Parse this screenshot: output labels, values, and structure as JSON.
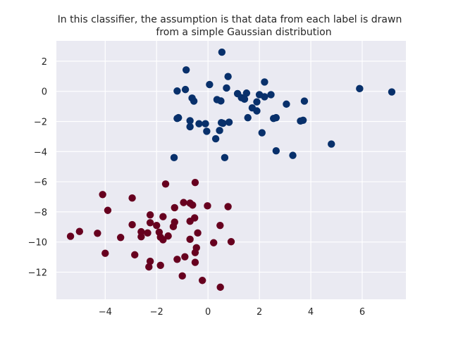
{
  "chart_data": {
    "type": "scatter",
    "title_lines": [
      "In this classifier, the assumption is that data from each label is drawn",
      "from a simple Gaussian distribution"
    ],
    "xlabel": "",
    "ylabel": "",
    "xlim": [
      -5.9,
      7.7
    ],
    "ylim": [
      -13.8,
      3.35
    ],
    "xticks": [
      -4,
      -2,
      0,
      2,
      4,
      6
    ],
    "yticks": [
      2,
      0,
      -2,
      -4,
      -6,
      -8,
      -10,
      -12
    ],
    "grid": true,
    "background_color": "#eaeaf2",
    "series": [
      {
        "color": "#08306b",
        "points": [
          [
            0.54,
            2.6
          ],
          [
            -0.85,
            1.42
          ],
          [
            0.78,
            0.98
          ],
          [
            2.2,
            0.62
          ],
          [
            0.06,
            0.45
          ],
          [
            -1.2,
            0.02
          ],
          [
            -0.88,
            0.12
          ],
          [
            0.72,
            0.22
          ],
          [
            5.9,
            0.18
          ],
          [
            7.15,
            -0.04
          ],
          [
            1.15,
            -0.15
          ],
          [
            1.5,
            -0.12
          ],
          [
            2.0,
            -0.22
          ],
          [
            2.45,
            -0.22
          ],
          [
            2.2,
            -0.36
          ],
          [
            1.3,
            -0.42
          ],
          [
            1.42,
            -0.52
          ],
          [
            0.35,
            -0.55
          ],
          [
            0.5,
            -0.64
          ],
          [
            -0.62,
            -0.45
          ],
          [
            -0.55,
            -0.65
          ],
          [
            1.9,
            -0.7
          ],
          [
            3.75,
            -0.65
          ],
          [
            3.05,
            -0.85
          ],
          [
            1.72,
            -1.1
          ],
          [
            1.9,
            -1.3
          ],
          [
            -1.15,
            -1.75
          ],
          [
            -1.2,
            -1.8
          ],
          [
            1.55,
            -1.75
          ],
          [
            2.55,
            -1.8
          ],
          [
            2.65,
            -1.75
          ],
          [
            3.6,
            -1.97
          ],
          [
            3.7,
            -1.92
          ],
          [
            -0.7,
            -1.95
          ],
          [
            -0.35,
            -2.15
          ],
          [
            -0.1,
            -2.15
          ],
          [
            0.52,
            -2.08
          ],
          [
            0.58,
            -2.12
          ],
          [
            0.82,
            -2.05
          ],
          [
            -0.7,
            -2.35
          ],
          [
            -0.05,
            -2.65
          ],
          [
            0.45,
            -2.6
          ],
          [
            2.1,
            -2.75
          ],
          [
            0.3,
            -3.15
          ],
          [
            4.8,
            -3.5
          ],
          [
            2.65,
            -3.95
          ],
          [
            3.3,
            -4.25
          ],
          [
            -1.32,
            -4.4
          ],
          [
            0.65,
            -4.4
          ]
        ]
      },
      {
        "color": "#67001f",
        "points": [
          [
            -0.5,
            -6.05
          ],
          [
            -1.65,
            -6.15
          ],
          [
            -4.1,
            -6.85
          ],
          [
            -2.95,
            -7.08
          ],
          [
            -0.95,
            -7.38
          ],
          [
            -0.7,
            -7.42
          ],
          [
            -0.6,
            -7.55
          ],
          [
            -0.02,
            -7.6
          ],
          [
            0.78,
            -7.65
          ],
          [
            -1.3,
            -7.72
          ],
          [
            -3.9,
            -7.9
          ],
          [
            -2.25,
            -8.2
          ],
          [
            -1.75,
            -8.32
          ],
          [
            -0.52,
            -8.4
          ],
          [
            -2.25,
            -8.72
          ],
          [
            -1.3,
            -8.68
          ],
          [
            -0.7,
            -8.62
          ],
          [
            -2.95,
            -8.85
          ],
          [
            -2.0,
            -8.9
          ],
          [
            -1.35,
            -8.98
          ],
          [
            0.47,
            -8.9
          ],
          [
            -5.0,
            -9.3
          ],
          [
            -2.6,
            -9.32
          ],
          [
            -2.35,
            -9.4
          ],
          [
            -1.9,
            -9.35
          ],
          [
            -4.3,
            -9.42
          ],
          [
            -0.4,
            -9.4
          ],
          [
            -5.35,
            -9.62
          ],
          [
            -2.6,
            -9.65
          ],
          [
            -1.85,
            -9.68
          ],
          [
            -1.55,
            -9.6
          ],
          [
            -3.4,
            -9.7
          ],
          [
            -1.75,
            -9.85
          ],
          [
            -0.7,
            -9.82
          ],
          [
            0.22,
            -10.05
          ],
          [
            0.9,
            -9.98
          ],
          [
            -0.45,
            -10.38
          ],
          [
            -4.0,
            -10.75
          ],
          [
            -2.85,
            -10.85
          ],
          [
            -0.5,
            -10.7
          ],
          [
            -0.9,
            -10.98
          ],
          [
            -1.2,
            -11.15
          ],
          [
            -2.25,
            -11.28
          ],
          [
            -0.5,
            -11.35
          ],
          [
            -2.3,
            -11.65
          ],
          [
            -1.85,
            -11.55
          ],
          [
            -1.0,
            -12.25
          ],
          [
            -0.22,
            -12.55
          ],
          [
            0.48,
            -13.0
          ]
        ]
      }
    ]
  }
}
